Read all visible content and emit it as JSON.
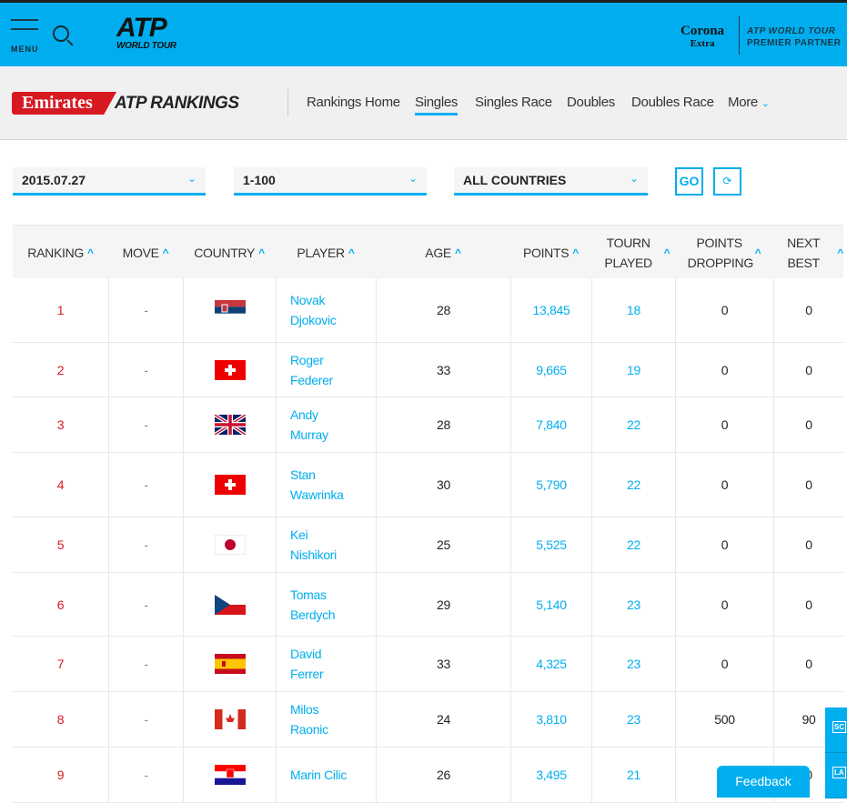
{
  "header": {
    "menu_label": "MENU",
    "logo_main": "ATP",
    "logo_sub": "WORLD TOUR",
    "sponsor": "Corona",
    "sponsor_sub": "Extra",
    "partner_line1": "ATP WORLD TOUR",
    "partner_line2": "PREMIER PARTNER"
  },
  "subnav": {
    "brand": "Emirates",
    "title": "ATP RANKINGS",
    "items": [
      {
        "label": "Rankings Home"
      },
      {
        "label": "Singles",
        "active": true
      },
      {
        "label": "Singles Race"
      },
      {
        "label": "Doubles"
      },
      {
        "label": "Doubles Race"
      },
      {
        "label": "More"
      }
    ]
  },
  "filters": {
    "date": "2015.07.27",
    "range": "1-100",
    "country": "ALL COUNTRIES",
    "go_label": "GO"
  },
  "columns": [
    "RANKING",
    "MOVE",
    "COUNTRY",
    "PLAYER",
    "AGE",
    "POINTS",
    "TOURN PLAYED",
    "POINTS DROPPING",
    "NEXT BEST"
  ],
  "rows": [
    {
      "rank": "1",
      "move": "-",
      "flag": "SRB",
      "player": "Novak Djokovic",
      "age": "28",
      "points": "13,845",
      "tourn": "18",
      "dropping": "0",
      "next": "0"
    },
    {
      "rank": "2",
      "move": "-",
      "flag": "SUI",
      "player": "Roger Federer",
      "age": "33",
      "points": "9,665",
      "tourn": "19",
      "dropping": "0",
      "next": "0"
    },
    {
      "rank": "3",
      "move": "-",
      "flag": "GBR",
      "player": "Andy Murray",
      "age": "28",
      "points": "7,840",
      "tourn": "22",
      "dropping": "0",
      "next": "0"
    },
    {
      "rank": "4",
      "move": "-",
      "flag": "SUI",
      "player": "Stan Wawrinka",
      "age": "30",
      "points": "5,790",
      "tourn": "22",
      "dropping": "0",
      "next": "0"
    },
    {
      "rank": "5",
      "move": "-",
      "flag": "JPN",
      "player": "Kei Nishikori",
      "age": "25",
      "points": "5,525",
      "tourn": "22",
      "dropping": "0",
      "next": "0"
    },
    {
      "rank": "6",
      "move": "-",
      "flag": "CZE",
      "player": "Tomas Berdych",
      "age": "29",
      "points": "5,140",
      "tourn": "23",
      "dropping": "0",
      "next": "0"
    },
    {
      "rank": "7",
      "move": "-",
      "flag": "ESP",
      "player": "David Ferrer",
      "age": "33",
      "points": "4,325",
      "tourn": "23",
      "dropping": "0",
      "next": "0"
    },
    {
      "rank": "8",
      "move": "-",
      "flag": "CAN",
      "player": "Milos Raonic",
      "age": "24",
      "points": "3,810",
      "tourn": "23",
      "dropping": "500",
      "next": "90"
    },
    {
      "rank": "9",
      "move": "-",
      "flag": "CRO",
      "player": "Marin Cilic",
      "age": "26",
      "points": "3,495",
      "tourn": "21",
      "dropping": "",
      "next": "0"
    }
  ],
  "side_tabs": [
    "SC",
    "LA"
  ],
  "feedback_label": "Feedback",
  "colors": {
    "brand_blue": "#00aeef",
    "rank_red": "#d71921",
    "emirates_red": "#d71921"
  }
}
